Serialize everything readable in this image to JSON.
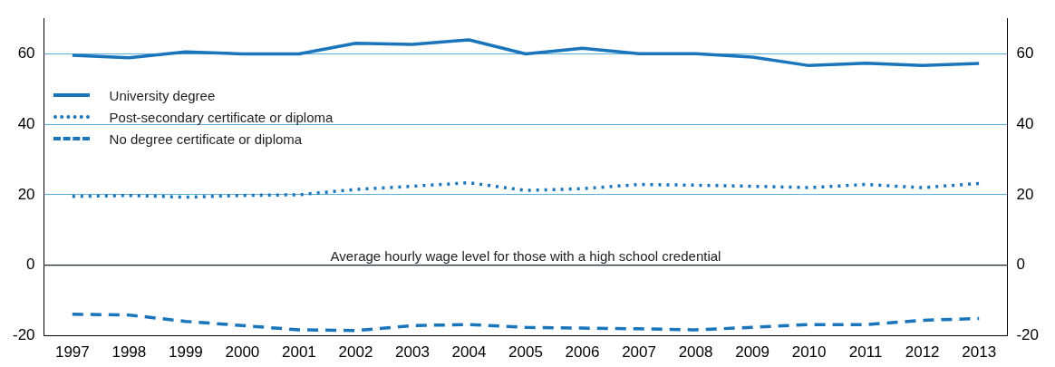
{
  "chart_data": {
    "type": "line",
    "categories": [
      "1997",
      "1998",
      "1999",
      "2000",
      "2001",
      "2002",
      "2003",
      "2004",
      "2005",
      "2006",
      "2007",
      "2008",
      "2009",
      "2010",
      "2011",
      "2012",
      "2013"
    ],
    "series": [
      {
        "name": "University degree",
        "color": "#1a75bb",
        "line_style": "solid",
        "values": [
          59.5,
          58.8,
          60.5,
          59.9,
          59.9,
          62.9,
          62.6,
          63.9,
          59.9,
          61.5,
          60,
          60,
          59,
          56.6,
          57.3,
          56.6,
          57.2
        ]
      },
      {
        "name": "Post-secondary certificate or diploma",
        "color": "#1a75bb",
        "line_style": "dotted",
        "values": [
          19.5,
          19.8,
          19.3,
          19.8,
          20,
          21.5,
          22.4,
          23.4,
          21.2,
          21.7,
          22.9,
          22.7,
          22.4,
          22,
          22.9,
          22,
          23.2
        ]
      },
      {
        "name": "No degree certificate or diploma",
        "color": "#1a75bb",
        "line_style": "dashed",
        "values": [
          -13.9,
          -14.1,
          -15.9,
          -17.1,
          -18.3,
          -18.5,
          -17.1,
          -16.8,
          -17.6,
          -17.8,
          -18,
          -18.3,
          -17.6,
          -16.8,
          -16.8,
          -15.6,
          -15.1
        ]
      }
    ],
    "ylim": [
      -20,
      70
    ],
    "yticks": [
      -20,
      0,
      20,
      40,
      60
    ],
    "y2lim": [
      -20,
      70
    ],
    "y2ticks": [
      -20,
      0,
      20,
      40,
      60
    ],
    "ref_lines": [
      {
        "axis": "y",
        "value": 0,
        "label": "Average hourly wage level for those with a high school credential",
        "color": "#000000"
      }
    ],
    "grid": "y",
    "legend": "top left",
    "marker": "none"
  }
}
